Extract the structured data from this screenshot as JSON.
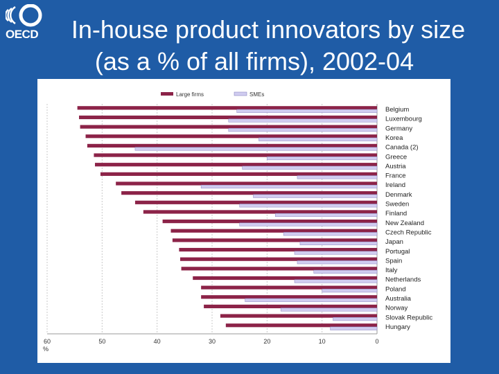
{
  "logo": {
    "wordmark": "OECD"
  },
  "title": {
    "line1": "In-house product innovators by size",
    "line2": "(as a % of all firms), 2002-04"
  },
  "colors": {
    "background": "#1f5ca6",
    "large_fill": "#8c2348",
    "sme_fill": "#d0ccf0"
  },
  "chart_data": {
    "type": "bar",
    "orientation": "horizontal",
    "axis_reversed": true,
    "legend_position": "top",
    "x_unit": "%",
    "xlim": [
      0,
      60
    ],
    "x_ticks": [
      "60",
      "50",
      "40",
      "30",
      "20",
      "10",
      "0"
    ],
    "grid": true,
    "categories": [
      "Belgium",
      "Luxembourg",
      "Germany",
      "Korea",
      "Canada (2)",
      "Greece",
      "Austria",
      "France",
      "Ireland",
      "Denmark",
      "Sweden",
      "Finland",
      "New Zealand",
      "Czech Republic",
      "Japan",
      "Portugal",
      "Spain",
      "Italy",
      "Netherlands",
      "Poland",
      "Australia",
      "Norway",
      "Slovak Republic",
      "Hungary"
    ],
    "series": [
      {
        "name": "Large firms",
        "values": [
          54.5,
          54.2,
          54.0,
          53.0,
          52.7,
          51.5,
          51.3,
          50.3,
          47.5,
          46.5,
          44.0,
          42.5,
          39.0,
          37.5,
          37.2,
          36.0,
          35.8,
          35.6,
          33.5,
          32.0,
          32.0,
          31.5,
          28.5,
          27.5
        ]
      },
      {
        "name": "SMEs",
        "values": [
          25.5,
          27.0,
          27.0,
          21.5,
          44.0,
          20.0,
          24.5,
          14.5,
          32.0,
          22.5,
          25.0,
          18.5,
          25.0,
          17.0,
          14.0,
          15.0,
          14.5,
          11.5,
          15.0,
          10.0,
          24.0,
          17.5,
          8.0,
          8.5
        ]
      }
    ]
  }
}
